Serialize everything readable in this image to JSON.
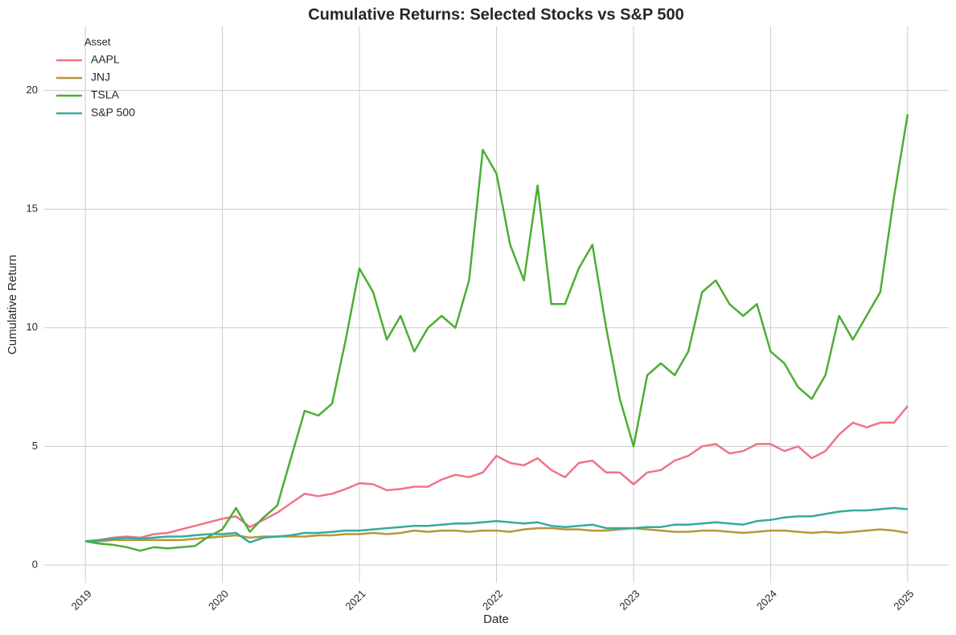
{
  "chart_data": {
    "type": "line",
    "title": "Cumulative Returns: Selected Stocks vs S&P 500",
    "x_label": "Date",
    "y_label": "Cumulative Return",
    "legend_title": "Asset",
    "legend": "upper left",
    "grid": true,
    "xlim": [
      2018.7,
      2025.3
    ],
    "xticks": [
      2019,
      2020,
      2021,
      2022,
      2023,
      2024,
      2025
    ],
    "ylim": [
      -0.75,
      22.7
    ],
    "yticks": [
      0,
      5,
      10,
      15,
      20
    ],
    "x": [
      2019.0,
      2019.1,
      2019.2,
      2019.3,
      2019.4,
      2019.5,
      2019.6,
      2019.7,
      2019.8,
      2019.9,
      2020.0,
      2020.1,
      2020.2,
      2020.3,
      2020.4,
      2020.5,
      2020.6,
      2020.7,
      2020.8,
      2020.9,
      2021.0,
      2021.1,
      2021.2,
      2021.3,
      2021.4,
      2021.5,
      2021.6,
      2021.7,
      2021.8,
      2021.9,
      2022.0,
      2022.1,
      2022.2,
      2022.3,
      2022.4,
      2022.5,
      2022.6,
      2022.7,
      2022.8,
      2022.9,
      2023.0,
      2023.1,
      2023.2,
      2023.3,
      2023.4,
      2023.5,
      2023.6,
      2023.7,
      2023.8,
      2023.9,
      2024.0,
      2024.1,
      2024.2,
      2024.3,
      2024.4,
      2024.5,
      2024.6,
      2024.7,
      2024.8,
      2024.9,
      2025.0
    ],
    "series": [
      {
        "name": "AAPL",
        "color": "#f07389",
        "values": [
          1.0,
          1.05,
          1.15,
          1.2,
          1.15,
          1.3,
          1.35,
          1.5,
          1.65,
          1.8,
          1.95,
          2.05,
          1.6,
          1.9,
          2.2,
          2.6,
          3.0,
          2.9,
          3.0,
          3.2,
          3.45,
          3.4,
          3.15,
          3.2,
          3.3,
          3.3,
          3.6,
          3.8,
          3.7,
          3.9,
          4.6,
          4.3,
          4.2,
          4.5,
          4.0,
          3.7,
          4.3,
          4.4,
          3.9,
          3.9,
          3.4,
          3.9,
          4.0,
          4.4,
          4.6,
          5.0,
          5.1,
          4.7,
          4.8,
          5.1,
          5.1,
          4.8,
          5.0,
          4.5,
          4.8,
          5.5,
          6.0,
          5.8,
          6.0,
          6.0,
          6.7
        ]
      },
      {
        "name": "JNJ",
        "color": "#b8963a",
        "values": [
          1.0,
          1.0,
          1.05,
          1.05,
          1.05,
          1.05,
          1.05,
          1.05,
          1.1,
          1.15,
          1.2,
          1.25,
          1.15,
          1.2,
          1.2,
          1.2,
          1.2,
          1.25,
          1.25,
          1.3,
          1.3,
          1.35,
          1.3,
          1.35,
          1.45,
          1.4,
          1.45,
          1.45,
          1.4,
          1.45,
          1.45,
          1.4,
          1.5,
          1.55,
          1.55,
          1.5,
          1.5,
          1.45,
          1.45,
          1.5,
          1.55,
          1.5,
          1.45,
          1.4,
          1.4,
          1.45,
          1.45,
          1.4,
          1.35,
          1.4,
          1.45,
          1.45,
          1.4,
          1.35,
          1.4,
          1.35,
          1.4,
          1.45,
          1.5,
          1.45,
          1.35
        ]
      },
      {
        "name": "TSLA",
        "color": "#4cae33",
        "values": [
          1.0,
          0.9,
          0.85,
          0.75,
          0.6,
          0.75,
          0.7,
          0.75,
          0.8,
          1.2,
          1.5,
          2.4,
          1.4,
          2.0,
          2.5,
          4.5,
          6.5,
          6.3,
          6.8,
          9.5,
          12.5,
          11.5,
          9.5,
          10.5,
          9.0,
          10.0,
          10.5,
          10.0,
          12.0,
          17.5,
          16.5,
          13.5,
          12.0,
          16.0,
          11.0,
          11.0,
          12.5,
          13.5,
          10.0,
          7.0,
          5.0,
          8.0,
          8.5,
          8.0,
          9.0,
          11.5,
          12.0,
          11.0,
          10.5,
          11.0,
          9.0,
          8.5,
          7.5,
          7.0,
          8.0,
          10.5,
          9.5,
          10.5,
          11.5,
          15.5,
          19.0
        ]
      },
      {
        "name": "S&P 500",
        "color": "#36ab9a",
        "values": [
          1.0,
          1.05,
          1.1,
          1.15,
          1.1,
          1.15,
          1.2,
          1.2,
          1.25,
          1.3,
          1.3,
          1.35,
          0.95,
          1.15,
          1.2,
          1.25,
          1.35,
          1.35,
          1.4,
          1.45,
          1.45,
          1.5,
          1.55,
          1.6,
          1.65,
          1.65,
          1.7,
          1.75,
          1.75,
          1.8,
          1.85,
          1.8,
          1.75,
          1.8,
          1.65,
          1.6,
          1.65,
          1.7,
          1.55,
          1.55,
          1.55,
          1.6,
          1.6,
          1.7,
          1.7,
          1.75,
          1.8,
          1.75,
          1.7,
          1.85,
          1.9,
          2.0,
          2.05,
          2.05,
          2.15,
          2.25,
          2.3,
          2.3,
          2.35,
          2.4,
          2.35
        ]
      }
    ]
  }
}
